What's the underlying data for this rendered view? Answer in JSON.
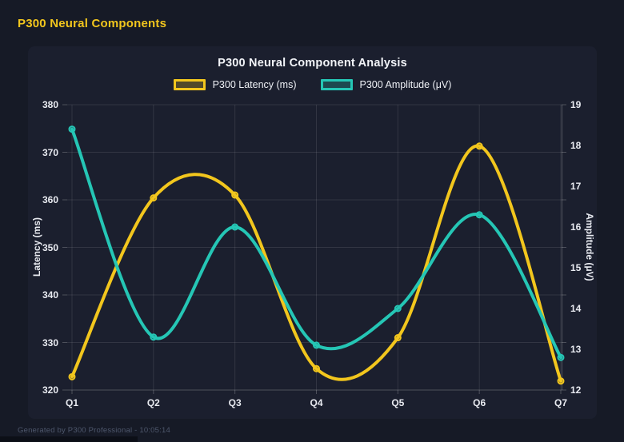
{
  "page": {
    "title": "P300 Neural Components",
    "footer": "Generated by P300 Professional - 10:05:14"
  },
  "colors": {
    "background": "#161a26",
    "card": "#1b1f2e",
    "accent_yellow": "#f2c61d",
    "accent_teal": "#25c6b5",
    "tick_text": "#e8eaf0",
    "muted_text": "#4e576c",
    "grid": "rgba(255,255,255,0.10)",
    "axis_line": "rgba(255,255,255,0.22)"
  },
  "chart_data": {
    "type": "line",
    "title": "P300 Neural Component Analysis",
    "categories": [
      "Q1",
      "Q2",
      "Q3",
      "Q4",
      "Q5",
      "Q6",
      "Q7"
    ],
    "series": [
      {
        "name": "P300 Latency (ms)",
        "axis": "left",
        "color": "#f2c61d",
        "values": [
          322.8,
          360.4,
          361.0,
          324.5,
          331.0,
          371.3,
          321.9
        ]
      },
      {
        "name": "P300 Amplitude (μV)",
        "axis": "right",
        "color": "#25c6b5",
        "values": [
          18.4,
          13.3,
          16.0,
          13.1,
          14.0,
          16.3,
          12.8
        ]
      }
    ],
    "left_axis": {
      "label": "Latency (ms)",
      "min": 320,
      "max": 380,
      "step": 10
    },
    "right_axis": {
      "label": "Amplitude (μV)",
      "min": 12,
      "max": 19,
      "step": 1
    },
    "legend_position": "top",
    "grid": true,
    "line_style": "smooth",
    "point_markers": true
  }
}
